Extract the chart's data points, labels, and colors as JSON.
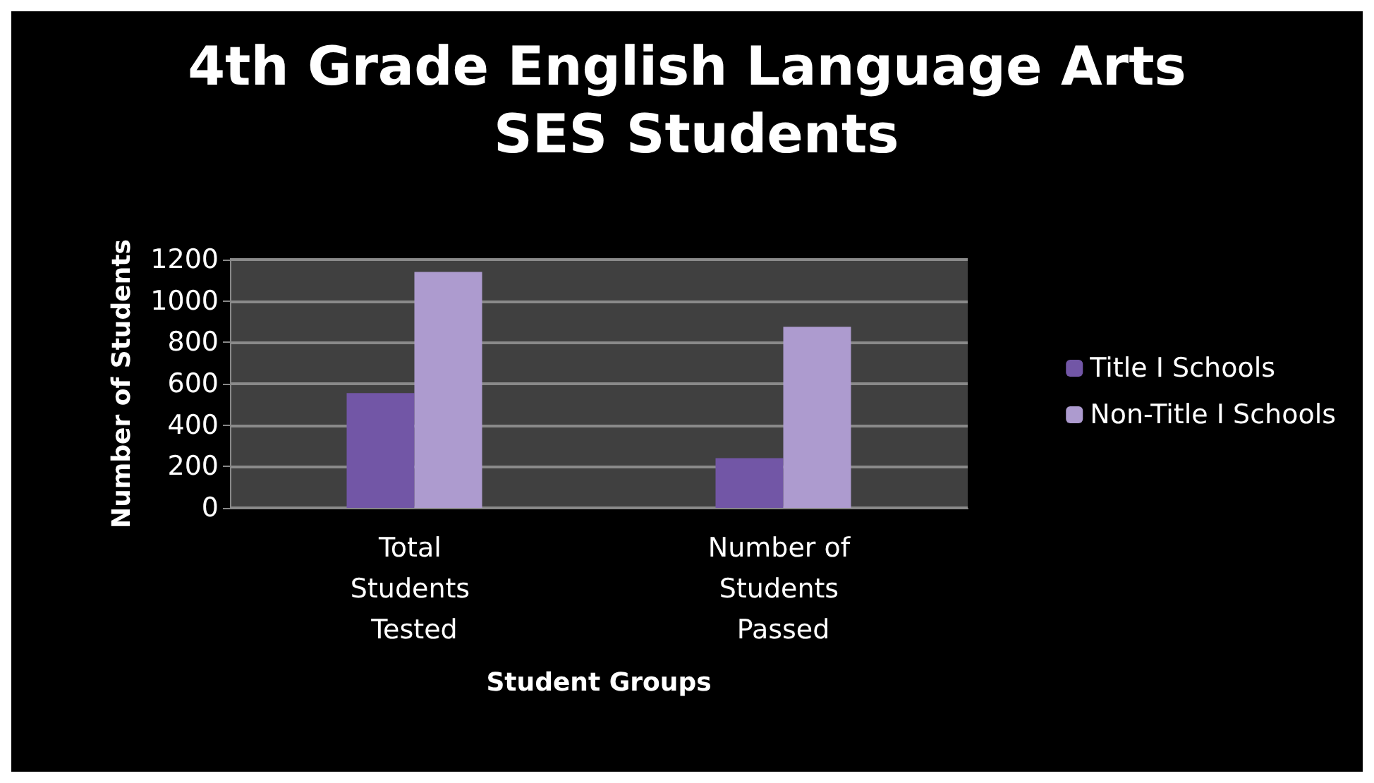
{
  "chart_data": {
    "type": "bar",
    "title": "4th Grade English Language Arts SES Students",
    "xlabel": "Student Groups",
    "ylabel": "Number of Students",
    "categories": [
      "Total Students Tested",
      "Number of Students Passed"
    ],
    "series": [
      {
        "name": "Title I Schools",
        "color": "#7256a6",
        "values": [
          555,
          240
        ]
      },
      {
        "name": "Non-Title I Schools",
        "color": "#ad9bcf",
        "values": [
          1140,
          875
        ]
      }
    ],
    "ylim": [
      0,
      1200
    ],
    "yticks": [
      0,
      200,
      400,
      600,
      800,
      1000,
      1200
    ],
    "grid": "y",
    "legend": "right"
  }
}
